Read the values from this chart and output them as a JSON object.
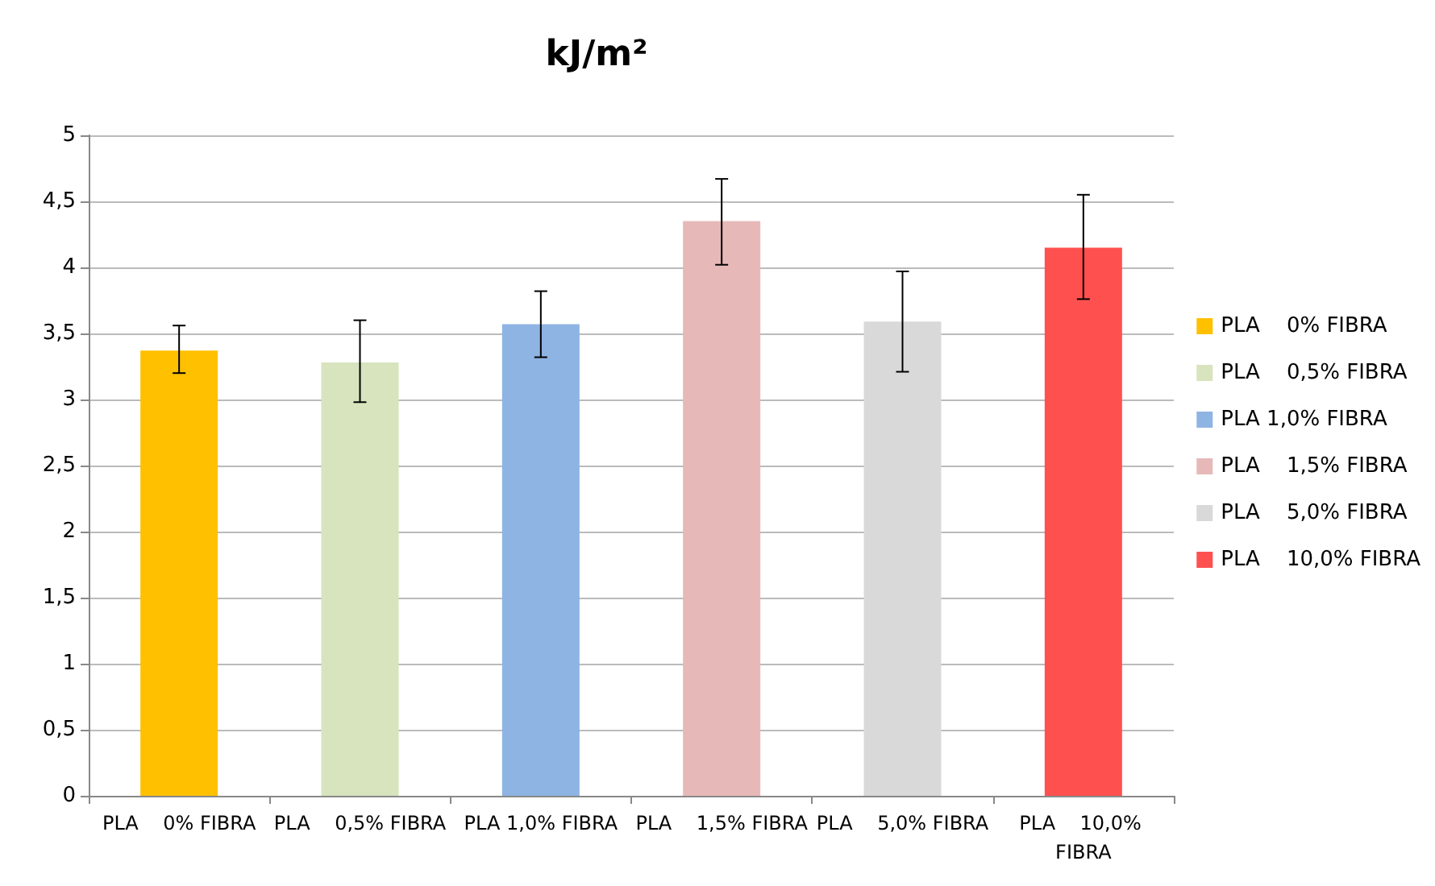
{
  "chart_data": {
    "type": "bar",
    "title": "kJ/m²",
    "categories": [
      "PLA    0% FIBRA",
      "PLA    0,5% FIBRA",
      "PLA 1,0% FIBRA",
      "PLA    1,5% FIBRA",
      "PLA    5,0% FIBRA",
      "PLA    10,0% FIBRA"
    ],
    "series": [
      {
        "name": "PLA    0% FIBRA",
        "color": "#ffc000",
        "values": [
          3.37,
          null,
          null,
          null,
          null,
          null
        ],
        "errors": [
          [
            3.2,
            3.56
          ],
          null,
          null,
          null,
          null,
          null
        ]
      },
      {
        "name": "PLA    0,5% FIBRA",
        "color": "#d7e4bd",
        "values": [
          null,
          3.28,
          null,
          null,
          null,
          null
        ],
        "errors": [
          null,
          [
            2.98,
            3.6
          ],
          null,
          null,
          null,
          null
        ]
      },
      {
        "name": "PLA 1,0% FIBRA",
        "color": "#8eb4e3",
        "values": [
          null,
          null,
          3.57,
          null,
          null,
          null
        ],
        "errors": [
          null,
          null,
          [
            3.32,
            3.82
          ],
          null,
          null,
          null
        ]
      },
      {
        "name": "PLA    1,5% FIBRA",
        "color": "#e6b9b8",
        "values": [
          null,
          null,
          null,
          4.35,
          null,
          null
        ],
        "errors": [
          null,
          null,
          null,
          [
            4.02,
            4.67
          ],
          null,
          null
        ]
      },
      {
        "name": "PLA    5,0% FIBRA",
        "color": "#d9d9d9",
        "values": [
          null,
          null,
          null,
          null,
          3.59,
          null
        ],
        "errors": [
          null,
          null,
          null,
          null,
          [
            3.21,
            3.97
          ],
          null
        ]
      },
      {
        "name": "PLA    10,0% FIBRA",
        "color": "#ff5050",
        "values": [
          null,
          null,
          null,
          null,
          null,
          4.15
        ],
        "errors": [
          null,
          null,
          null,
          null,
          null,
          [
            3.76,
            4.55
          ]
        ]
      }
    ],
    "ylim": [
      0,
      5
    ],
    "yticks": [
      0,
      {
        "value": 0.5,
        "label": "0,5"
      },
      1,
      {
        "value": 1.5,
        "label": "1,5"
      },
      2,
      {
        "value": 2.5,
        "label": "2,5"
      },
      3,
      {
        "value": 3.5,
        "label": "3,5"
      },
      4,
      {
        "value": 4.5,
        "label": "4,5"
      },
      5
    ],
    "grid": "y",
    "legend": "right"
  }
}
